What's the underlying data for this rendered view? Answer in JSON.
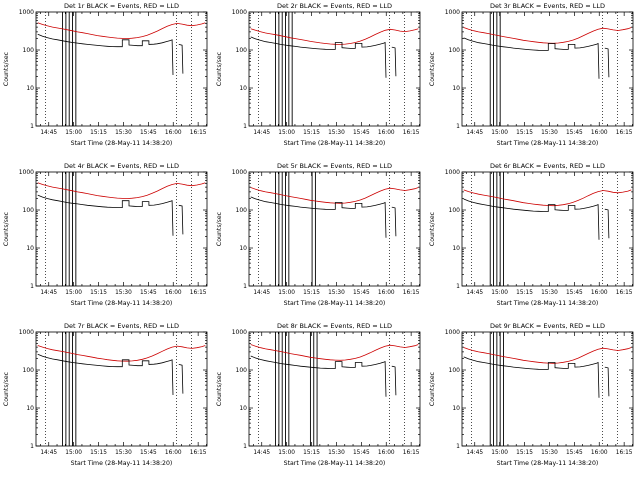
{
  "figure": {
    "xlabel": "Start Time (28-May-11 14:38:20)",
    "ylabel": "Counts/sec",
    "x_tick_labels": [
      "14:45",
      "15:00",
      "15:15",
      "15:30",
      "15:45",
      "16:00",
      "16:15"
    ],
    "x_tick_minutes": [
      6.67,
      21.67,
      36.67,
      51.67,
      66.67,
      81.67,
      96.67
    ],
    "y_tick_labels": [
      "1",
      "10",
      "100",
      "1000"
    ],
    "y_tick_values": [
      1,
      10,
      100,
      1000
    ]
  },
  "chart_data": {
    "type": "line",
    "title_note": "BLACK = Events, RED = LLD",
    "x_unit": "minutes since 14:38:20 on 28-May-11",
    "x_range_minutes": [
      -1,
      102
    ],
    "y_scale": "log",
    "y_range": [
      1,
      1000
    ],
    "grid": "dotted vertical lines",
    "legend_position": "in-title",
    "colors": {
      "events": "#000000",
      "lld": "#cc0000"
    },
    "dotted_line_minutes": [
      4.7,
      83.7,
      92.7
    ],
    "red_base": [
      [
        0,
        520
      ],
      [
        3,
        470
      ],
      [
        6,
        430
      ],
      [
        9,
        400
      ],
      [
        12,
        380
      ],
      [
        15,
        360
      ],
      [
        18,
        340
      ],
      [
        21,
        320
      ],
      [
        24,
        300
      ],
      [
        27,
        285
      ],
      [
        30,
        270
      ],
      [
        33,
        255
      ],
      [
        36,
        240
      ],
      [
        39,
        230
      ],
      [
        42,
        220
      ],
      [
        45,
        212
      ],
      [
        48,
        206
      ],
      [
        51,
        202
      ],
      [
        54,
        200
      ],
      [
        57,
        204
      ],
      [
        60,
        212
      ],
      [
        63,
        225
      ],
      [
        66,
        245
      ],
      [
        69,
        275
      ],
      [
        72,
        315
      ],
      [
        75,
        365
      ],
      [
        78,
        420
      ],
      [
        81,
        470
      ],
      [
        84,
        500
      ],
      [
        87,
        480
      ],
      [
        90,
        450
      ],
      [
        93,
        435
      ],
      [
        96,
        455
      ],
      [
        99,
        485
      ],
      [
        101,
        520
      ]
    ],
    "black_base_segments": [
      [
        [
          0,
          260
        ],
        [
          3,
          230
        ],
        [
          6,
          210
        ],
        [
          9,
          195
        ],
        [
          12,
          185
        ],
        [
          15,
          175
        ],
        [
          18,
          165
        ],
        [
          21,
          158
        ],
        [
          24,
          152
        ],
        [
          27,
          146
        ],
        [
          30,
          140
        ],
        [
          33,
          136
        ],
        [
          36,
          132
        ],
        [
          39,
          128
        ],
        [
          42,
          125
        ],
        [
          45,
          123
        ],
        [
          48,
          122
        ],
        [
          51,
          122
        ],
        [
          51,
          185
        ],
        [
          55,
          185
        ],
        [
          55,
          135
        ],
        [
          58,
          132
        ],
        [
          60,
          130
        ],
        [
          63,
          130
        ],
        [
          63,
          175
        ],
        [
          67,
          175
        ],
        [
          67,
          140
        ],
        [
          70,
          142
        ],
        [
          72,
          146
        ],
        [
          75,
          155
        ],
        [
          78,
          168
        ],
        [
          80,
          178
        ],
        [
          81,
          185
        ],
        [
          81.5,
          22
        ]
      ],
      [
        [
          85,
          140
        ],
        [
          87,
          134
        ],
        [
          87.5,
          24
        ]
      ]
    ],
    "panels": [
      {
        "title": "Det 1r BLACK = Events, RED = LLD",
        "red_scale": 1.0,
        "black_scale": 1.0,
        "glitch_minutes": [
          15,
          17,
          19,
          21,
          23
        ]
      },
      {
        "title": "Det 2r BLACK = Events, RED = LLD",
        "red_scale": 0.7,
        "black_scale": 0.85,
        "glitch_minutes": [
          15,
          17,
          19,
          21,
          23,
          25
        ]
      },
      {
        "title": "Det 3r BLACK = Events, RED = LLD",
        "red_scale": 0.75,
        "black_scale": 0.8,
        "glitch_minutes": [
          16,
          18,
          20,
          22
        ]
      },
      {
        "title": "Det 4r BLACK = Events, RED = LLD",
        "red_scale": 1.0,
        "black_scale": 0.95,
        "glitch_minutes": [
          15,
          17,
          19,
          21,
          23
        ]
      },
      {
        "title": "Det 5r BLACK = Events, RED = LLD",
        "red_scale": 0.75,
        "black_scale": 0.85,
        "glitch_minutes": [
          15,
          17,
          19,
          21,
          23,
          37,
          39
        ]
      },
      {
        "title": "Det 6r BLACK = Events, RED = LLD",
        "red_scale": 0.65,
        "black_scale": 0.75,
        "glitch_minutes": [
          16,
          18,
          20,
          22,
          24
        ]
      },
      {
        "title": "Det 7r BLACK = Events, RED = LLD",
        "red_scale": 0.85,
        "black_scale": 1.0,
        "glitch_minutes": [
          15,
          17,
          19,
          21,
          23
        ]
      },
      {
        "title": "Det 8r BLACK = Events, RED = LLD",
        "red_scale": 0.9,
        "black_scale": 0.9,
        "glitch_minutes": [
          15,
          17,
          19,
          21,
          23,
          36,
          38,
          40
        ]
      },
      {
        "title": "Det 9r BLACK = Events, RED = LLD",
        "red_scale": 0.75,
        "black_scale": 0.85,
        "glitch_minutes": [
          16,
          18,
          20,
          22,
          24
        ]
      }
    ]
  }
}
